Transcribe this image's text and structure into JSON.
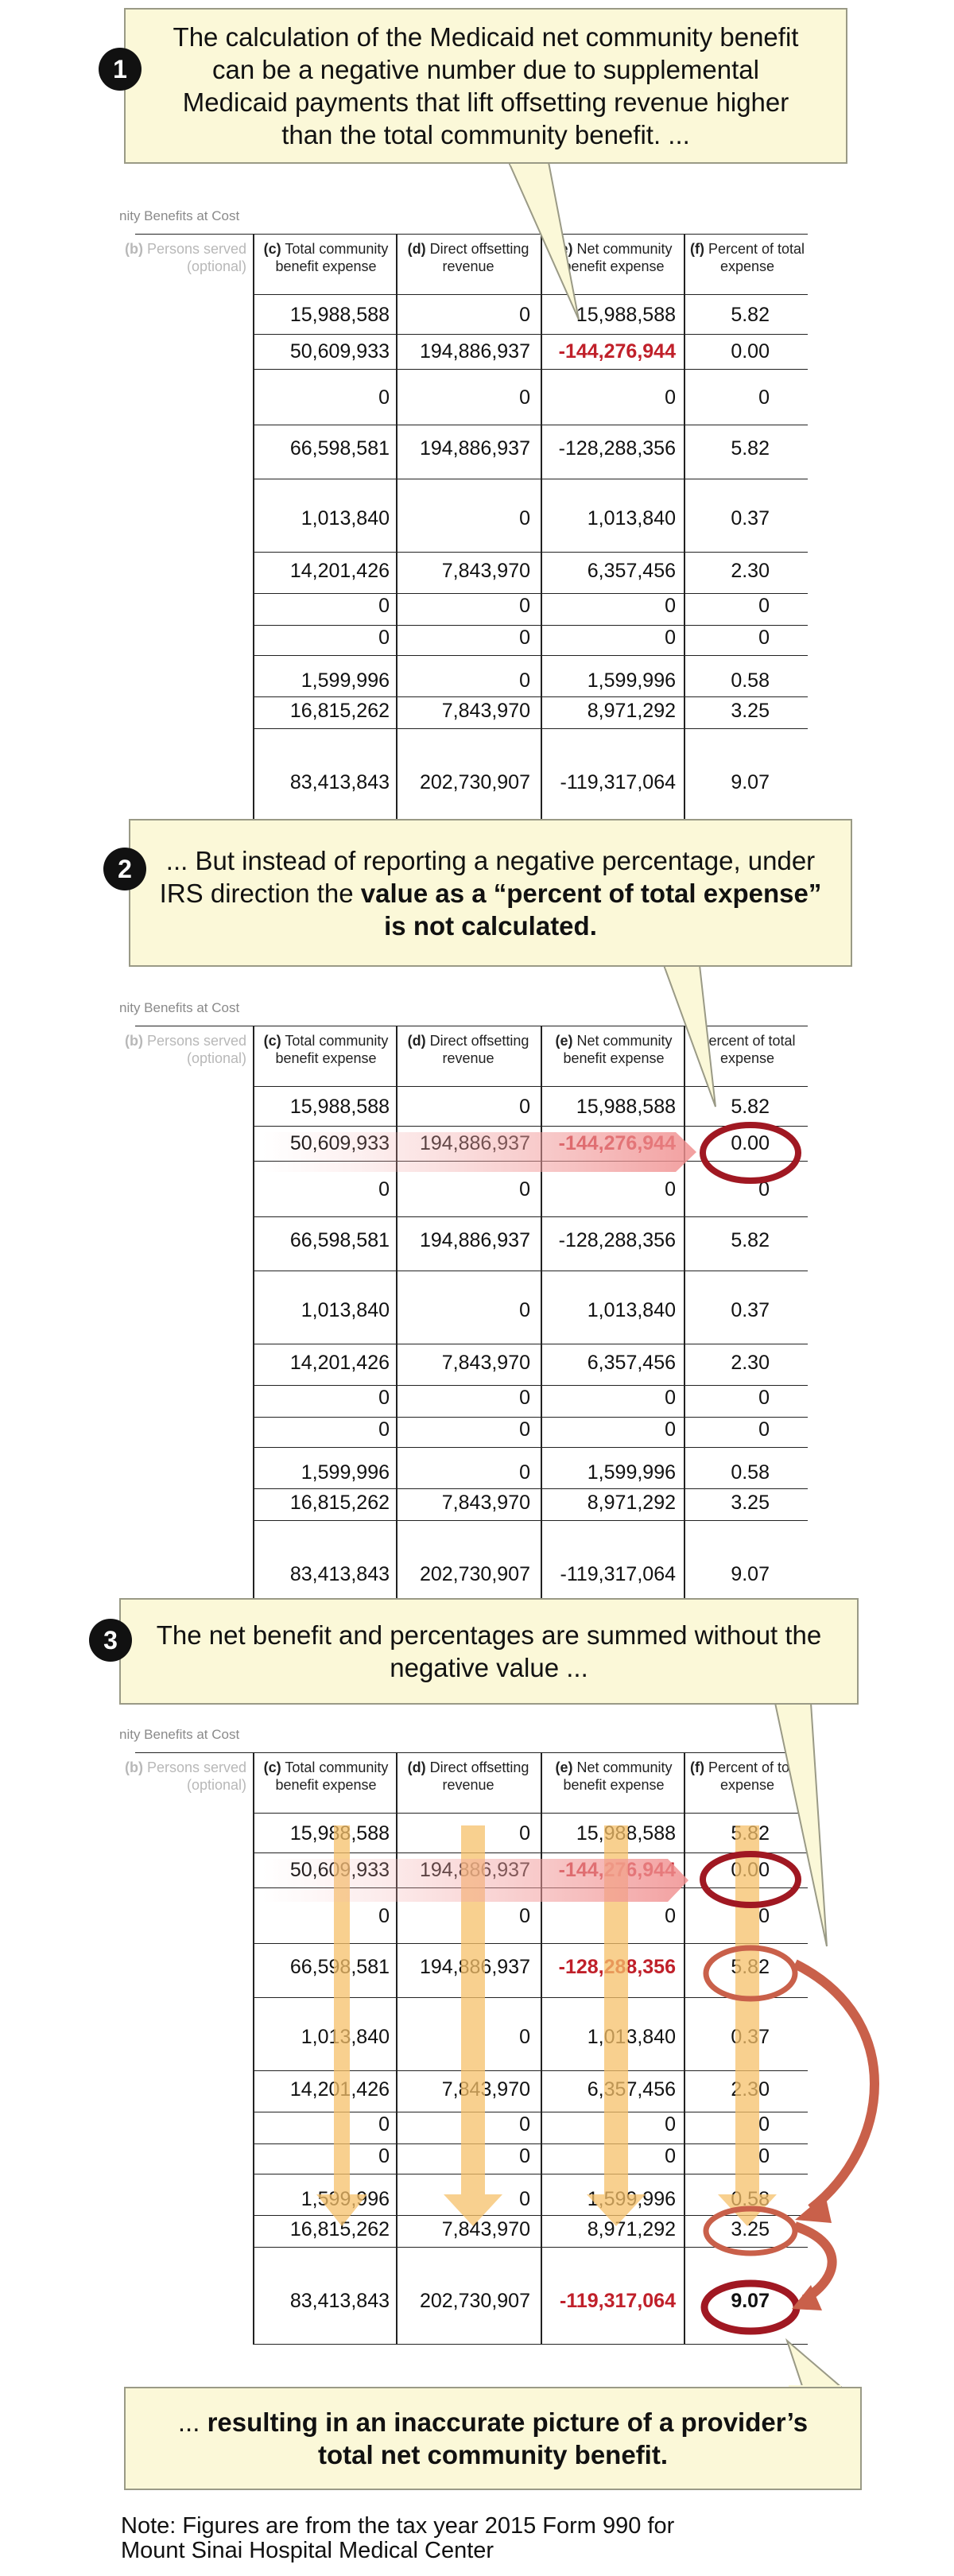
{
  "section_title": "nity Benefits at Cost",
  "columns": {
    "b": {
      "letter": "(b)",
      "line1": " Persons served",
      "line2": "(optional)"
    },
    "c": {
      "letter": "(c)",
      "line1": " Total community",
      "line2": "benefit expense"
    },
    "d": {
      "letter": "(d)",
      "line1": " Direct offsetting",
      "line2": "revenue"
    },
    "e": {
      "letter": "(e)",
      "line1": " Net community",
      "line2": "benefit expense"
    },
    "f": {
      "letter": "(f)",
      "line1": " Percent of total",
      "line2": "expense"
    },
    "f_panel2": {
      "letter": "",
      "line1": "Percent of total",
      "line2": "expense"
    }
  },
  "rows": [
    {
      "c": "15,988,588",
      "d": "0",
      "e": "15,988,588",
      "f": "5.82"
    },
    {
      "c": "50,609,933",
      "d": "194,886,937",
      "e": "-144,276,944",
      "f": "0.00"
    },
    {
      "c": "0",
      "d": "0",
      "e": "0",
      "f": "0"
    },
    {
      "c": "66,598,581",
      "d": "194,886,937",
      "e": "-128,288,356",
      "f": "5.82"
    },
    {
      "c": "1,013,840",
      "d": "0",
      "e": "1,013,840",
      "f": "0.37"
    },
    {
      "c": "14,201,426",
      "d": "7,843,970",
      "e": "6,357,456",
      "f": "2.30"
    },
    {
      "c": "0",
      "d": "0",
      "e": "0",
      "f": "0"
    },
    {
      "c": "0",
      "d": "0",
      "e": "0",
      "f": "0"
    },
    {
      "c": "1,599,996",
      "d": "0",
      "e": "1,599,996",
      "f": "0.58"
    },
    {
      "c": "16,815,262",
      "d": "7,843,970",
      "e": "8,971,292",
      "f": "3.25"
    },
    {
      "c": "83,413,843",
      "d": "202,730,907",
      "e": "-119,317,064",
      "f": "9.07"
    }
  ],
  "callouts": [
    {
      "number": "1",
      "text": "The calculation of the Medicaid net community benefit can be a negative number due to supplemental Medicaid payments that lift offsetting revenue higher than the total community benefit. ..."
    },
    {
      "number": "2",
      "text_a": "... But instead of reporting a negative percentage, under IRS direction the ",
      "text_b": "value as a “percent of total expense” is not calculated."
    },
    {
      "number": "3",
      "text": "The net benefit and percentages are summed without the negative value ..."
    },
    {
      "number": "",
      "text_a": "... ",
      "text_b": "resulting in an inaccurate picture of a provider’s total net community benefit."
    }
  ],
  "note": {
    "line1": "Note: Figures are from the tax year 2015 Form 990 for",
    "line2": "Mount Sinai Hospital Medical Center"
  },
  "colors": {
    "callout_bg": "#fbf8d8",
    "negative_red": "#c0202a",
    "circle_red": "#a01822",
    "arrow_orange": "#f5c06a",
    "arrow_coral": "#c9604a"
  }
}
